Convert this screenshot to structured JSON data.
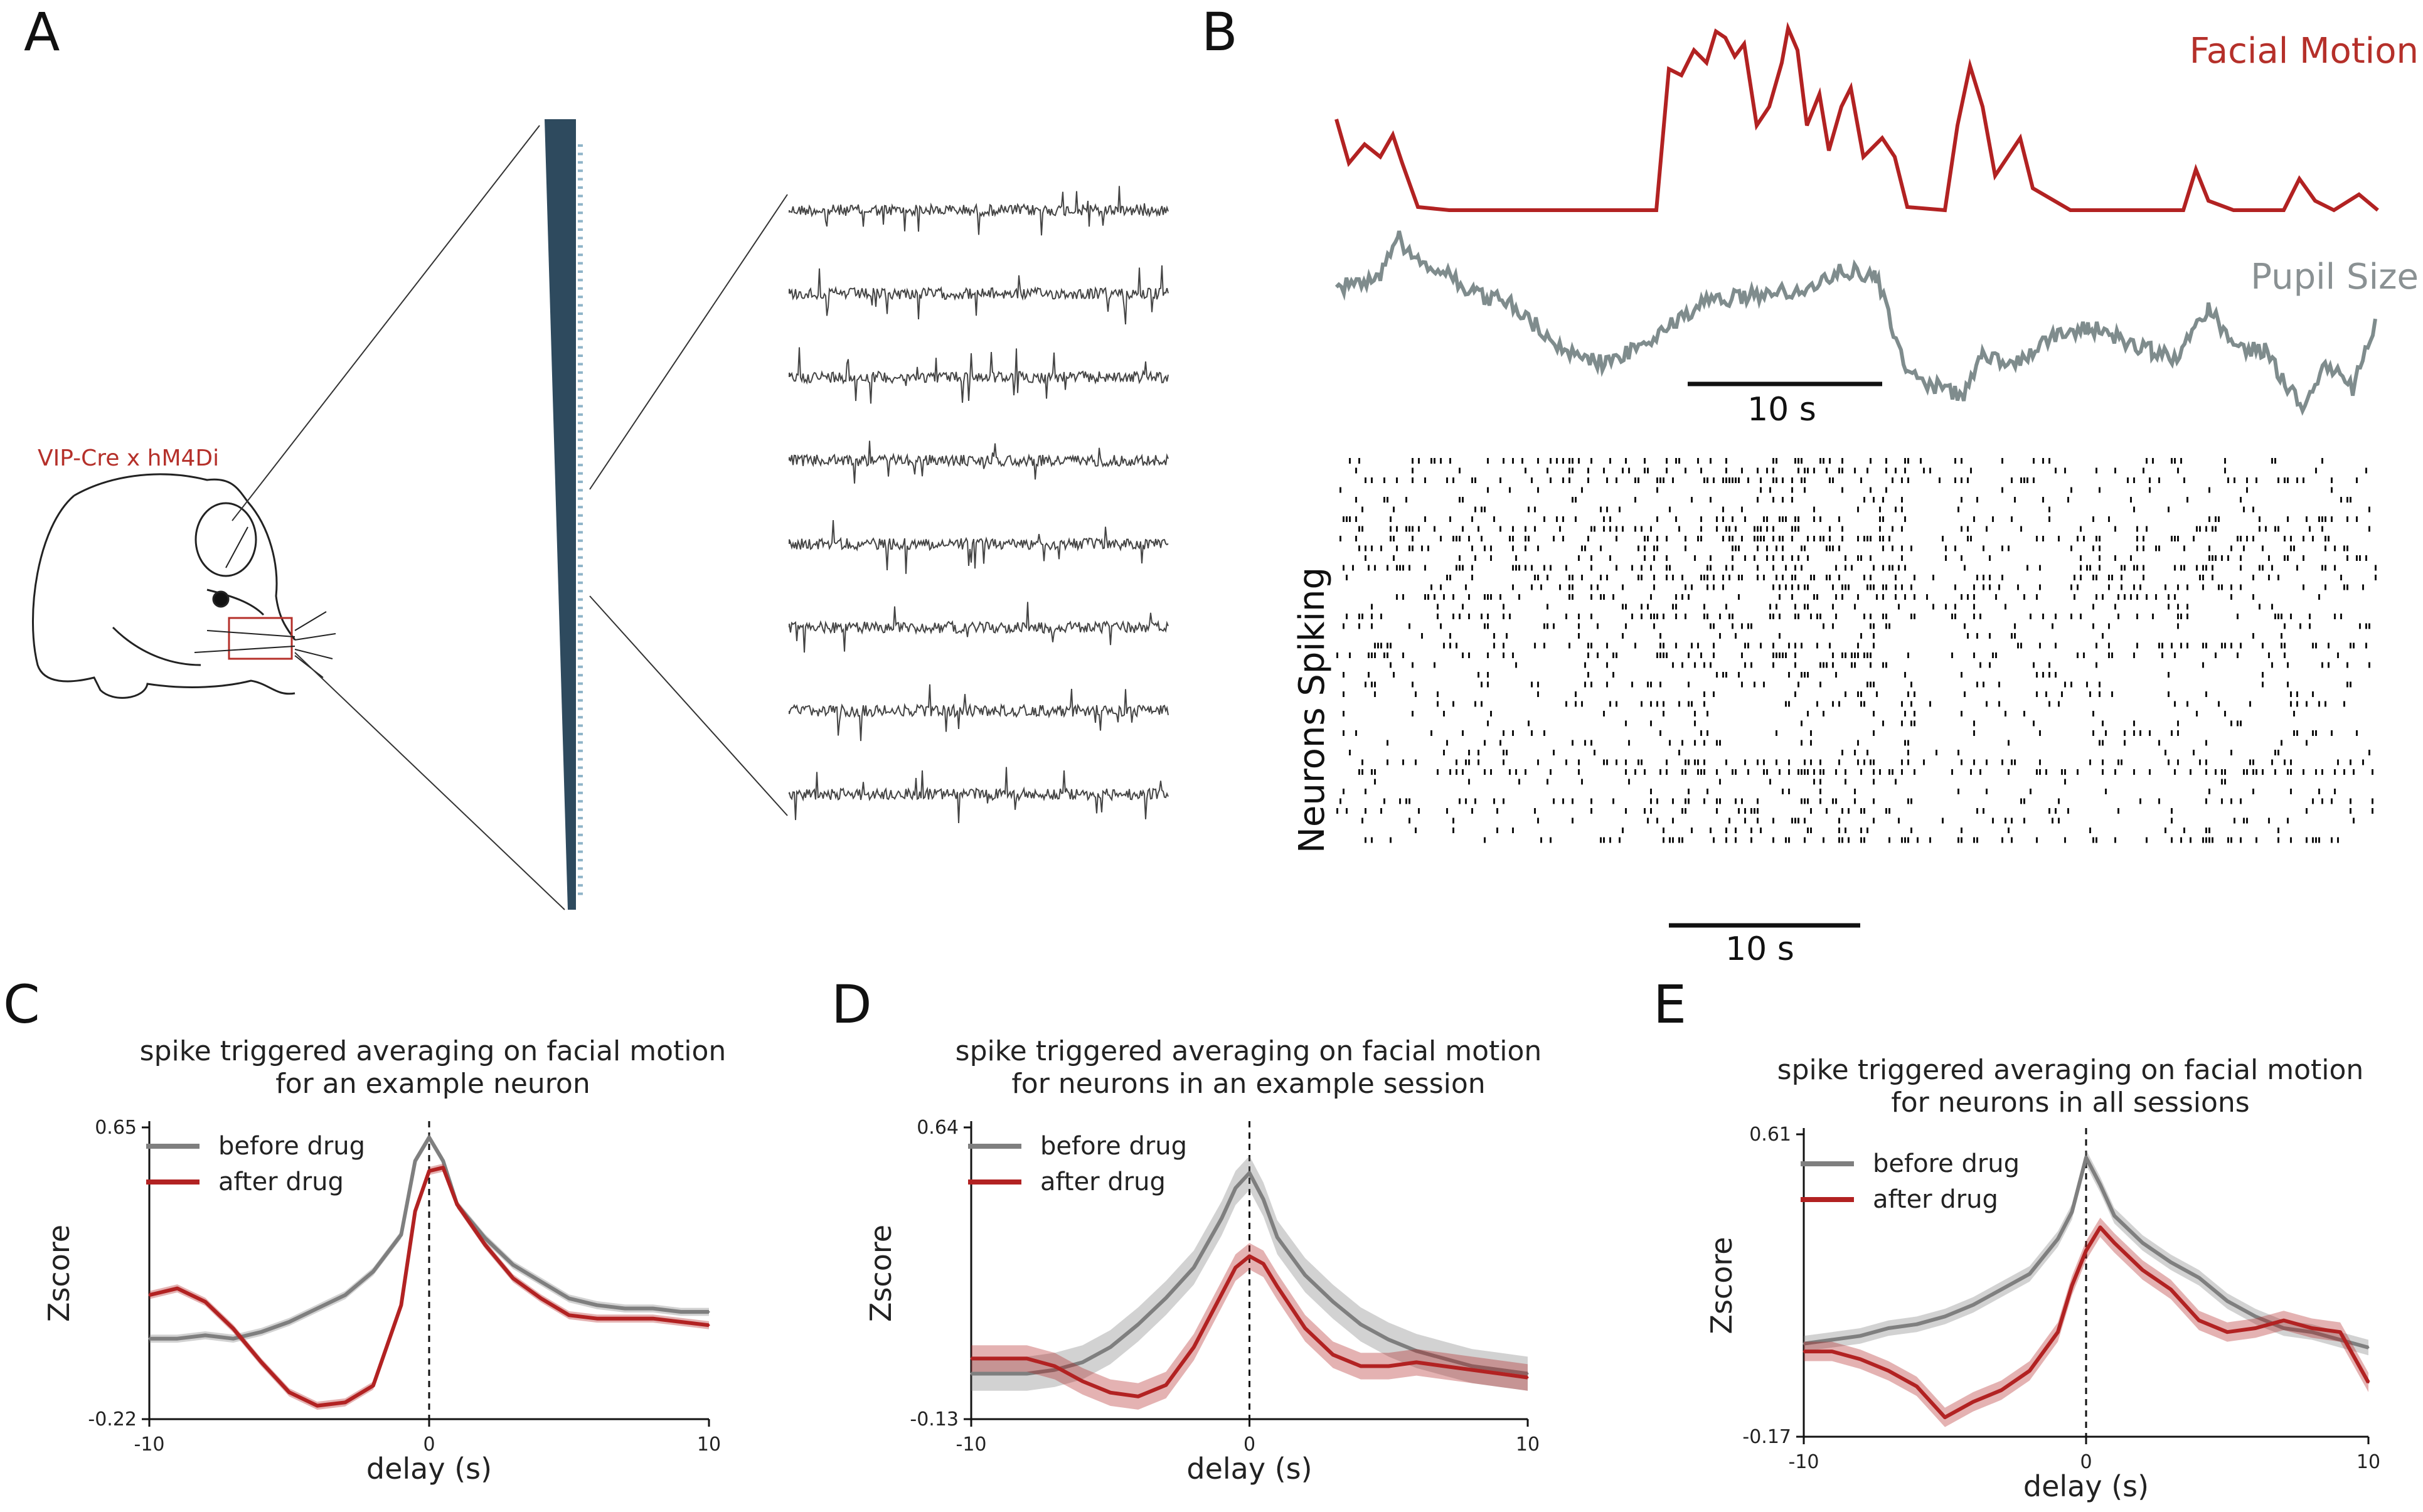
{
  "colors": {
    "before": "#7f7f7f",
    "after": "#b22222",
    "label_red": "#b5302a",
    "probe": "#2e4a5e"
  },
  "panelA": {
    "letter": "A",
    "mouse_label": "VIP-Cre x hM4Di",
    "traces_count": 8
  },
  "panelB": {
    "letter": "B",
    "facial_label": "Facial Motion",
    "pupil_label": "Pupil Size",
    "neurons_label": "Neurons Spiking",
    "scale_top": "10 s",
    "scale_bottom": "10 s"
  },
  "chart_data": [
    {
      "id": "C",
      "type": "line",
      "letter": "C",
      "title_lines": [
        "spike triggered averaging on facial motion",
        "for an example neuron"
      ],
      "xlabel": "delay (s)",
      "ylabel": "Zscore",
      "xlim": [
        -10,
        10
      ],
      "ylim": [
        -0.22,
        0.65
      ],
      "xticks": [
        "-10",
        "0",
        "10"
      ],
      "yticks": [
        "0.65",
        "-0.22"
      ],
      "legend": [
        "before drug",
        "after drug"
      ],
      "x": [
        -10,
        -9,
        -8,
        -7,
        -6,
        -5,
        -4,
        -3,
        -2,
        -1,
        -0.5,
        0,
        0.5,
        1,
        2,
        3,
        4,
        5,
        6,
        7,
        8,
        9,
        10
      ],
      "series": [
        {
          "name": "before drug",
          "band": 0.012,
          "values": [
            0.02,
            0.02,
            0.03,
            0.02,
            0.04,
            0.07,
            0.11,
            0.15,
            0.22,
            0.33,
            0.55,
            0.62,
            0.55,
            0.42,
            0.32,
            0.24,
            0.19,
            0.14,
            0.12,
            0.11,
            0.11,
            0.1,
            0.1
          ]
        },
        {
          "name": "after drug",
          "band": 0.012,
          "values": [
            0.15,
            0.17,
            0.13,
            0.05,
            -0.05,
            -0.14,
            -0.18,
            -0.17,
            -0.12,
            0.12,
            0.4,
            0.52,
            0.53,
            0.42,
            0.3,
            0.2,
            0.14,
            0.09,
            0.08,
            0.08,
            0.08,
            0.07,
            0.06
          ]
        }
      ]
    },
    {
      "id": "D",
      "type": "line",
      "letter": "D",
      "title_lines": [
        "spike triggered averaging on facial motion",
        "for neurons in an example session"
      ],
      "xlabel": "delay (s)",
      "ylabel": "Zscore",
      "xlim": [
        -10,
        10
      ],
      "ylim": [
        -0.13,
        0.64
      ],
      "xticks": [
        "-10",
        "0",
        "10"
      ],
      "yticks": [
        "0.64",
        "-0.13"
      ],
      "legend": [
        "before drug",
        "after drug"
      ],
      "x": [
        -10,
        -9,
        -8,
        -7,
        -6,
        -5,
        -4,
        -3,
        -2,
        -1,
        -0.5,
        0,
        0.5,
        1,
        2,
        3,
        4,
        5,
        6,
        7,
        8,
        9,
        10
      ],
      "series": [
        {
          "name": "before drug",
          "band": 0.045,
          "values": [
            -0.01,
            -0.01,
            -0.01,
            0.0,
            0.02,
            0.06,
            0.12,
            0.19,
            0.27,
            0.4,
            0.48,
            0.52,
            0.45,
            0.35,
            0.25,
            0.18,
            0.12,
            0.08,
            0.05,
            0.03,
            0.01,
            0.0,
            -0.01
          ]
        },
        {
          "name": "after drug",
          "band": 0.035,
          "values": [
            0.03,
            0.03,
            0.03,
            0.01,
            -0.03,
            -0.06,
            -0.07,
            -0.04,
            0.06,
            0.2,
            0.27,
            0.3,
            0.28,
            0.22,
            0.11,
            0.04,
            0.01,
            0.01,
            0.02,
            0.01,
            0.0,
            -0.01,
            -0.02
          ]
        }
      ]
    },
    {
      "id": "E",
      "type": "line",
      "letter": "E",
      "title_lines": [
        "spike triggered averaging on facial motion",
        "for neurons in all sessions"
      ],
      "xlabel": "delay (s)",
      "ylabel": "Zscore",
      "xlim": [
        -10,
        10
      ],
      "ylim": [
        -0.17,
        0.61
      ],
      "xticks": [
        "-10",
        "0",
        "10"
      ],
      "yticks": [
        "0.61",
        "-0.17"
      ],
      "legend": [
        "before drug",
        "after drug"
      ],
      "x": [
        -10,
        -9,
        -8,
        -7,
        -6,
        -5,
        -4,
        -3,
        -2,
        -1,
        -0.5,
        0,
        0.5,
        1,
        2,
        3,
        4,
        5,
        6,
        7,
        8,
        9,
        10
      ],
      "series": [
        {
          "name": "before drug",
          "band": 0.02,
          "values": [
            0.07,
            0.08,
            0.09,
            0.11,
            0.12,
            0.14,
            0.17,
            0.21,
            0.25,
            0.34,
            0.41,
            0.55,
            0.48,
            0.4,
            0.33,
            0.28,
            0.24,
            0.18,
            0.14,
            0.11,
            0.1,
            0.08,
            0.06
          ]
        },
        {
          "name": "after drug",
          "band": 0.025,
          "values": [
            0.05,
            0.05,
            0.03,
            0.0,
            -0.04,
            -0.12,
            -0.08,
            -0.05,
            0.0,
            0.1,
            0.22,
            0.31,
            0.37,
            0.33,
            0.26,
            0.21,
            0.13,
            0.1,
            0.11,
            0.13,
            0.11,
            0.1,
            -0.03
          ]
        }
      ]
    }
  ]
}
